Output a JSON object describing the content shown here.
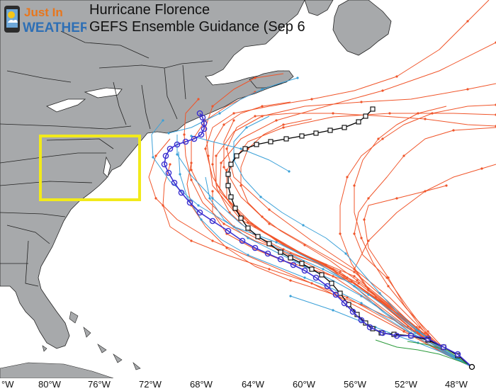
{
  "logo": {
    "line1": "Just In",
    "line2": "WEATHER"
  },
  "title": {
    "line1": "Hurricane Florence",
    "line2": "GEFS Ensemble Guidance (Sep 6"
  },
  "axis": {
    "ticks": [
      "°W",
      "80°W",
      "76°W",
      "72°W",
      "68°W",
      "64°W",
      "60°W",
      "56°W",
      "52°W",
      "48°W"
    ]
  },
  "colors": {
    "ocean": "#ffffff",
    "land": "#a7a9ab",
    "border": "#222222",
    "ensemble": "#f0552a",
    "ensemble_alt": "#3aa0d8",
    "mean": "#000000",
    "operational": "#3b2fd0",
    "highlight_box": "#f2ea1a"
  },
  "icons": {
    "logo": "weather-app-icon"
  }
}
